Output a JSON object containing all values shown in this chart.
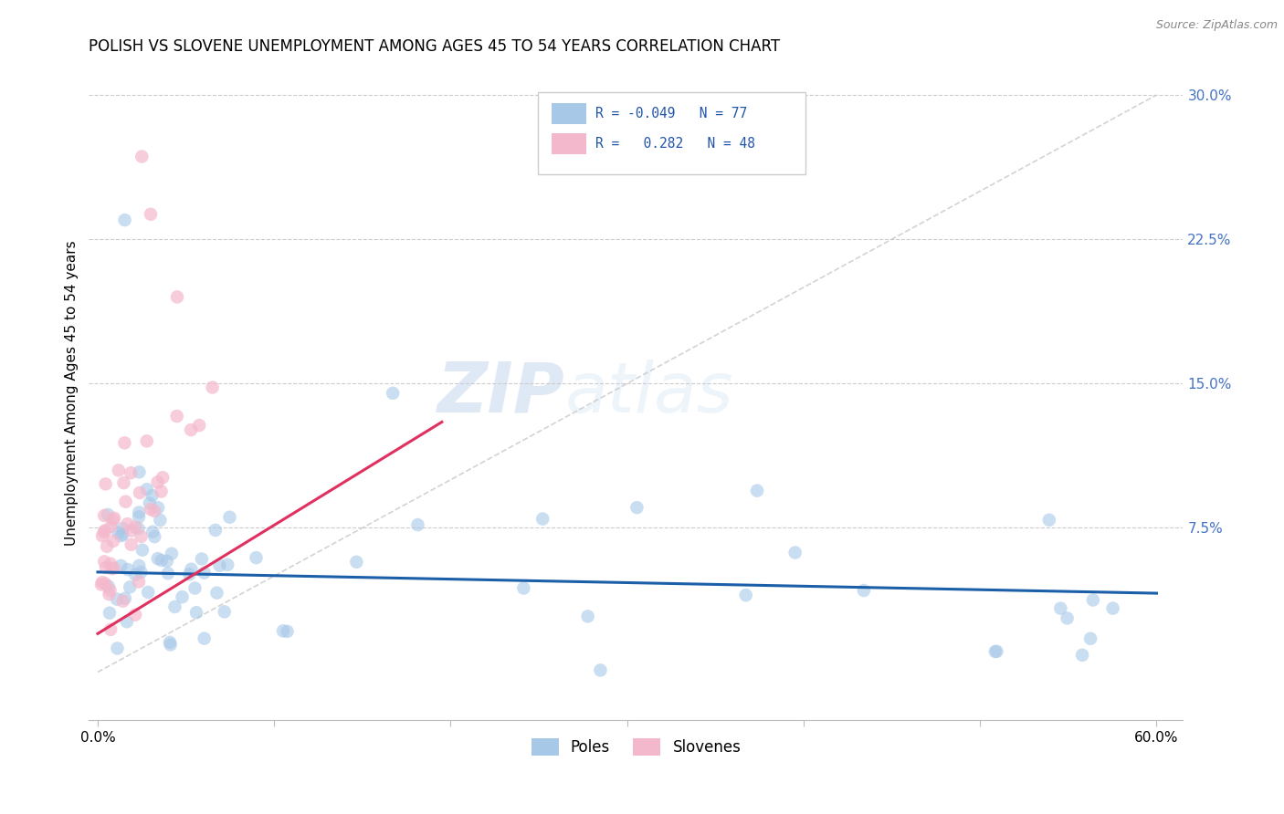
{
  "title": "POLISH VS SLOVENE UNEMPLOYMENT AMONG AGES 45 TO 54 YEARS CORRELATION CHART",
  "source": "Source: ZipAtlas.com",
  "ylabel": "Unemployment Among Ages 45 to 54 years",
  "xlim": [
    0.0,
    0.6
  ],
  "ylim": [
    -0.025,
    0.315
  ],
  "xticks": [
    0.0,
    0.1,
    0.2,
    0.3,
    0.4,
    0.5,
    0.6
  ],
  "xticklabels": [
    "0.0%",
    "",
    "",
    "",
    "",
    "",
    "60.0%"
  ],
  "yticks_right": [
    0.0,
    0.075,
    0.15,
    0.225,
    0.3
  ],
  "ytick_labels_right": [
    "",
    "7.5%",
    "15.0%",
    "22.5%",
    "30.0%"
  ],
  "blue_color": "#a8c8e8",
  "pink_color": "#f4b8cc",
  "blue_line_color": "#1a5fa8",
  "pink_line_color": "#e03060",
  "diag_line_color": "#c8c8c8",
  "watermark_zip": "ZIP",
  "watermark_atlas": "atlas",
  "title_fontsize": 12,
  "tick_fontsize": 11,
  "right_tick_color": "#4472c4",
  "poles_seed": 42,
  "slovenes_seed": 99
}
